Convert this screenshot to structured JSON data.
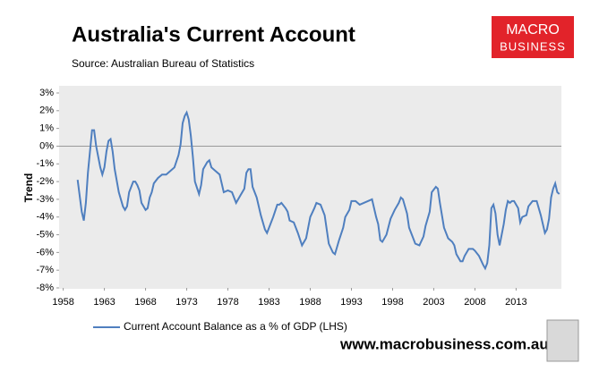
{
  "chart_data": {
    "type": "line",
    "title": "Australia's Current Account",
    "subtitle": "Source: Australian Bureau of Statistics",
    "y_label": "Trend",
    "logo": {
      "top": "MACRO",
      "bottom": "BUSINESS"
    },
    "footer": "www.macrobusiness.com.au",
    "xlim": [
      1957.5,
      2018.5
    ],
    "xticks": [
      1958,
      1963,
      1968,
      1973,
      1978,
      1983,
      1988,
      1993,
      1998,
      2003,
      2008,
      2013
    ],
    "ylim": [
      -8,
      3
    ],
    "yticks": [
      {
        "value": 3,
        "label": "3%"
      },
      {
        "value": 2,
        "label": "2%"
      },
      {
        "value": 1,
        "label": "1%"
      },
      {
        "value": 0,
        "label": "0%"
      },
      {
        "value": -1,
        "label": "-1%"
      },
      {
        "value": -2,
        "label": "-2%"
      },
      {
        "value": -3,
        "label": "-3%"
      },
      {
        "value": -4,
        "label": "-4%"
      },
      {
        "value": -5,
        "label": "-5%"
      },
      {
        "value": -6,
        "label": "-6%"
      },
      {
        "value": -7,
        "label": "-7%"
      },
      {
        "value": -8,
        "label": "-8%"
      }
    ],
    "legend": "bottom",
    "x": [
      1959.75,
      1960.25,
      1960.5,
      1960.75,
      1961,
      1961.25,
      1961.5,
      1961.75,
      1962,
      1962.5,
      1962.75,
      1963,
      1963.25,
      1963.5,
      1963.75,
      1964,
      1964.25,
      1964.75,
      1965.25,
      1965.5,
      1965.75,
      1966,
      1966.5,
      1966.75,
      1967,
      1967.25,
      1967.5,
      1968,
      1968.25,
      1968.5,
      1968.75,
      1969,
      1969.5,
      1970,
      1970.5,
      1971,
      1971.5,
      1972,
      1972.25,
      1972.5,
      1972.75,
      1973,
      1973.25,
      1973.5,
      1973.75,
      1974,
      1974.5,
      1974.75,
      1975,
      1975.5,
      1975.75,
      1976,
      1976.5,
      1977,
      1977.5,
      1978,
      1978.5,
      1979,
      1979.5,
      1980,
      1980.25,
      1980.5,
      1980.75,
      1981,
      1981.5,
      1982,
      1982.5,
      1982.75,
      1983,
      1983.5,
      1984,
      1984.25,
      1984.5,
      1985,
      1985.25,
      1985.5,
      1986,
      1986.5,
      1987,
      1987.5,
      1988,
      1988.5,
      1988.75,
      1989.25,
      1989.75,
      1990.25,
      1990.75,
      1991,
      1991.5,
      1992,
      1992.25,
      1992.75,
      1993,
      1993.5,
      1994,
      1994.5,
      1995,
      1995.5,
      1996,
      1996.25,
      1996.5,
      1996.75,
      1997.25,
      1997.75,
      1998.25,
      1998.75,
      1999,
      1999.25,
      1999.75,
      2000,
      2000.5,
      2000.75,
      2001.25,
      2001.75,
      2002,
      2002.5,
      2002.75,
      2003.25,
      2003.5,
      2003.75,
      2004.25,
      2004.75,
      2005.25,
      2005.5,
      2005.75,
      2006.25,
      2006.5,
      2006.75,
      2007.25,
      2007.75,
      2008,
      2008.5,
      2009,
      2009.25,
      2009.5,
      2009.75,
      2010,
      2010.25,
      2010.5,
      2010.75,
      2011,
      2011.5,
      2011.75,
      2012,
      2012.25,
      2012.5,
      2012.75,
      2013.25,
      2013.5,
      2013.75,
      2014.25,
      2014.5,
      2015,
      2015.5,
      2015.75,
      2016,
      2016.5,
      2016.75,
      2017,
      2017.25,
      2017.5,
      2017.75,
      2018,
      2018.25
    ],
    "series": [
      {
        "name": "Current Account Balance as a % of GDP (LHS)",
        "color": "#4f7fbf",
        "values": [
          -1.9,
          -3.7,
          -4.2,
          -3.2,
          -1.5,
          -0.3,
          0.9,
          0.9,
          0,
          -1.2,
          -1.6,
          -1.2,
          -0.3,
          0.3,
          0.4,
          -0.3,
          -1.3,
          -2.6,
          -3.4,
          -3.6,
          -3.4,
          -2.6,
          -2.0,
          -2.0,
          -2.2,
          -2.5,
          -3.2,
          -3.6,
          -3.5,
          -2.9,
          -2.6,
          -2.1,
          -1.8,
          -1.6,
          -1.6,
          -1.4,
          -1.2,
          -0.5,
          0.1,
          1.3,
          1.7,
          1.9,
          1.5,
          0.6,
          -0.6,
          -2.0,
          -2.7,
          -2.2,
          -1.3,
          -0.9,
          -0.8,
          -1.2,
          -1.4,
          -1.6,
          -2.6,
          -2.5,
          -2.6,
          -3.2,
          -2.8,
          -2.4,
          -1.5,
          -1.3,
          -1.3,
          -2.3,
          -2.9,
          -3.9,
          -4.7,
          -4.9,
          -4.6,
          -4.0,
          -3.3,
          -3.3,
          -3.2,
          -3.5,
          -3.7,
          -4.2,
          -4.3,
          -4.9,
          -5.6,
          -5.2,
          -4.0,
          -3.5,
          -3.2,
          -3.3,
          -3.9,
          -5.5,
          -6.0,
          -6.1,
          -5.3,
          -4.6,
          -4.0,
          -3.6,
          -3.1,
          -3.1,
          -3.3,
          -3.2,
          -3.1,
          -3.0,
          -4.0,
          -4.4,
          -5.3,
          -5.4,
          -5.0,
          -4.1,
          -3.6,
          -3.2,
          -2.9,
          -3.0,
          -3.8,
          -4.6,
          -5.2,
          -5.5,
          -5.6,
          -5.1,
          -4.5,
          -3.7,
          -2.6,
          -2.3,
          -2.4,
          -3.2,
          -4.6,
          -5.2,
          -5.4,
          -5.6,
          -6.1,
          -6.5,
          -6.5,
          -6.2,
          -5.8,
          -5.8,
          -5.9,
          -6.2,
          -6.7,
          -6.9,
          -6.6,
          -5.6,
          -3.5,
          -3.3,
          -3.8,
          -5.0,
          -5.6,
          -4.4,
          -3.6,
          -3.1,
          -3.2,
          -3.1,
          -3.1,
          -3.5,
          -4.3,
          -4.0,
          -3.9,
          -3.4,
          -3.1,
          -3.1,
          -3.5,
          -3.9,
          -4.9,
          -4.7,
          -4.1,
          -2.9,
          -2.4,
          -2.1,
          -2.6,
          -2.7
        ]
      }
    ]
  }
}
